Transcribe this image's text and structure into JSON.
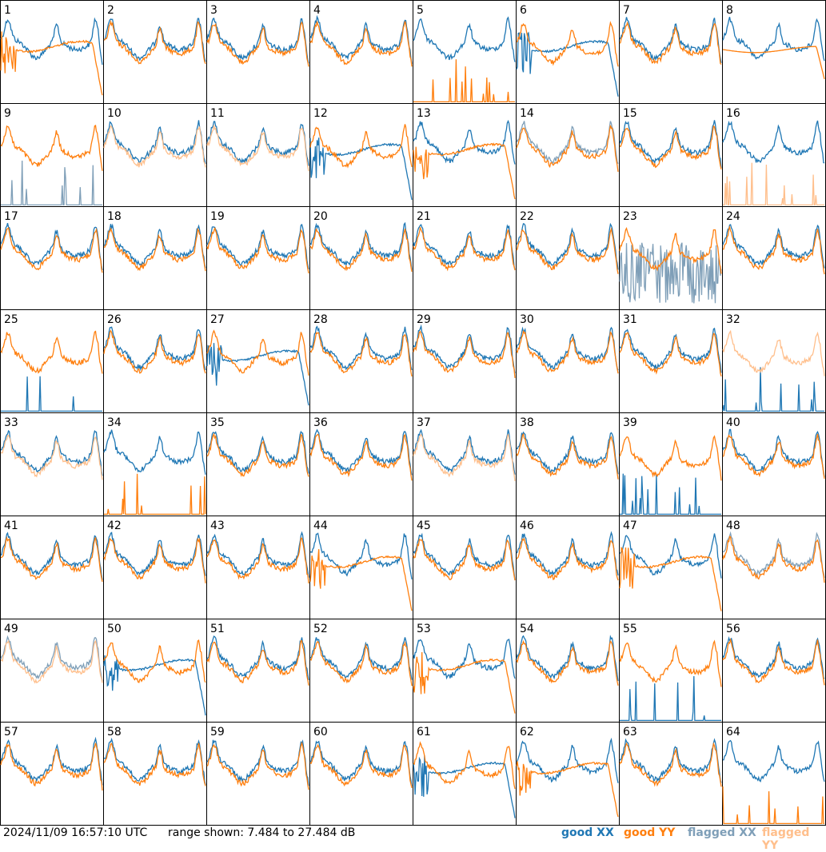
{
  "footer": {
    "timestamp": "2024/11/09 16:57:10 UTC",
    "range_text": "range shown: 7.484 to 27.484 dB"
  },
  "legend": [
    {
      "label": "good XX",
      "color": "#1f77b4"
    },
    {
      "label": "good YY",
      "color": "#ff7f0e"
    },
    {
      "label": "flagged XX",
      "color": "#7f9fb8"
    },
    {
      "label": "flagged YY",
      "color": "#ffbf8c"
    }
  ],
  "chart_data": {
    "type": "line",
    "title": "",
    "ylim": [
      7.484,
      27.484
    ],
    "grid": false,
    "layout": "8x8 small multiples",
    "panels": [
      {
        "id": "1",
        "xx": "good",
        "yy": "good",
        "xx_shape": "normal",
        "yy_shape": "rolloff"
      },
      {
        "id": "2",
        "xx": "good",
        "yy": "good"
      },
      {
        "id": "3",
        "xx": "good",
        "yy": "good"
      },
      {
        "id": "4",
        "xx": "good",
        "yy": "good"
      },
      {
        "id": "5",
        "xx": "good",
        "yy": "good",
        "xx_shape": "normal",
        "yy_shape": "spikes"
      },
      {
        "id": "6",
        "xx": "good",
        "yy": "good",
        "xx_shape": "rolloff",
        "yy_shape": "normal"
      },
      {
        "id": "7",
        "xx": "good",
        "yy": "good"
      },
      {
        "id": "8",
        "xx": "good",
        "yy": "good",
        "xx_shape": "normal",
        "yy_shape": "flat"
      },
      {
        "id": "9",
        "xx": "flagged",
        "yy": "good",
        "xx_shape": "spikes",
        "yy_shape": "normal"
      },
      {
        "id": "10",
        "xx": "good",
        "yy": "flagged"
      },
      {
        "id": "11",
        "xx": "good",
        "yy": "flagged"
      },
      {
        "id": "12",
        "xx": "good",
        "yy": "good",
        "xx_shape": "rolloff",
        "yy_shape": "normal"
      },
      {
        "id": "13",
        "xx": "good",
        "yy": "good",
        "xx_shape": "normal",
        "yy_shape": "rolloff"
      },
      {
        "id": "14",
        "xx": "flagged",
        "yy": "good"
      },
      {
        "id": "15",
        "xx": "good",
        "yy": "good"
      },
      {
        "id": "16",
        "xx": "good",
        "yy": "flagged",
        "xx_shape": "normal",
        "yy_shape": "spikes"
      },
      {
        "id": "17",
        "xx": "good",
        "yy": "good"
      },
      {
        "id": "18",
        "xx": "good",
        "yy": "good"
      },
      {
        "id": "19",
        "xx": "good",
        "yy": "good"
      },
      {
        "id": "20",
        "xx": "good",
        "yy": "good"
      },
      {
        "id": "21",
        "xx": "good",
        "yy": "good"
      },
      {
        "id": "22",
        "xx": "good",
        "yy": "good"
      },
      {
        "id": "23",
        "xx": "flagged",
        "yy": "good",
        "xx_shape": "noisy",
        "yy_shape": "normal"
      },
      {
        "id": "24",
        "xx": "good",
        "yy": "good"
      },
      {
        "id": "25",
        "xx": "good",
        "yy": "good",
        "xx_shape": "spikes",
        "yy_shape": "normal"
      },
      {
        "id": "26",
        "xx": "good",
        "yy": "good"
      },
      {
        "id": "27",
        "xx": "good",
        "yy": "good",
        "xx_shape": "rolloff",
        "yy_shape": "normal"
      },
      {
        "id": "28",
        "xx": "good",
        "yy": "good"
      },
      {
        "id": "29",
        "xx": "good",
        "yy": "good"
      },
      {
        "id": "30",
        "xx": "good",
        "yy": "good"
      },
      {
        "id": "31",
        "xx": "good",
        "yy": "good"
      },
      {
        "id": "32",
        "xx": "good",
        "yy": "flagged",
        "xx_shape": "spikes",
        "yy_shape": "normal"
      },
      {
        "id": "33",
        "xx": "good",
        "yy": "flagged"
      },
      {
        "id": "34",
        "xx": "good",
        "yy": "good",
        "xx_shape": "normal",
        "yy_shape": "spikes"
      },
      {
        "id": "35",
        "xx": "good",
        "yy": "good"
      },
      {
        "id": "36",
        "xx": "good",
        "yy": "good"
      },
      {
        "id": "37",
        "xx": "good",
        "yy": "flagged"
      },
      {
        "id": "38",
        "xx": "good",
        "yy": "good"
      },
      {
        "id": "39",
        "xx": "good",
        "yy": "good",
        "xx_shape": "spikes",
        "yy_shape": "normal"
      },
      {
        "id": "40",
        "xx": "good",
        "yy": "good"
      },
      {
        "id": "41",
        "xx": "good",
        "yy": "good"
      },
      {
        "id": "42",
        "xx": "good",
        "yy": "good"
      },
      {
        "id": "43",
        "xx": "good",
        "yy": "good"
      },
      {
        "id": "44",
        "xx": "good",
        "yy": "good",
        "xx_shape": "normal",
        "yy_shape": "rolloff"
      },
      {
        "id": "45",
        "xx": "good",
        "yy": "good"
      },
      {
        "id": "46",
        "xx": "good",
        "yy": "good"
      },
      {
        "id": "47",
        "xx": "good",
        "yy": "good",
        "xx_shape": "normal",
        "yy_shape": "rolloff"
      },
      {
        "id": "48",
        "xx": "flagged",
        "yy": "good"
      },
      {
        "id": "49",
        "xx": "flagged",
        "yy": "flagged"
      },
      {
        "id": "50",
        "xx": "good",
        "yy": "good",
        "xx_shape": "rolloff",
        "yy_shape": "normal"
      },
      {
        "id": "51",
        "xx": "good",
        "yy": "good"
      },
      {
        "id": "52",
        "xx": "good",
        "yy": "good"
      },
      {
        "id": "53",
        "xx": "good",
        "yy": "good",
        "xx_shape": "normal",
        "yy_shape": "rolloff"
      },
      {
        "id": "54",
        "xx": "good",
        "yy": "good"
      },
      {
        "id": "55",
        "xx": "good",
        "yy": "good",
        "xx_shape": "spikes",
        "yy_shape": "normal"
      },
      {
        "id": "56",
        "xx": "good",
        "yy": "good"
      },
      {
        "id": "57",
        "xx": "good",
        "yy": "good"
      },
      {
        "id": "58",
        "xx": "good",
        "yy": "good"
      },
      {
        "id": "59",
        "xx": "good",
        "yy": "good"
      },
      {
        "id": "60",
        "xx": "good",
        "yy": "good"
      },
      {
        "id": "61",
        "xx": "good",
        "yy": "good",
        "xx_shape": "rolloff",
        "yy_shape": "normal"
      },
      {
        "id": "62",
        "xx": "good",
        "yy": "good",
        "xx_shape": "normal",
        "yy_shape": "rolloff"
      },
      {
        "id": "63",
        "xx": "good",
        "yy": "good"
      },
      {
        "id": "64",
        "xx": "good",
        "yy": "good",
        "xx_shape": "normal",
        "yy_shape": "spikes"
      }
    ]
  }
}
